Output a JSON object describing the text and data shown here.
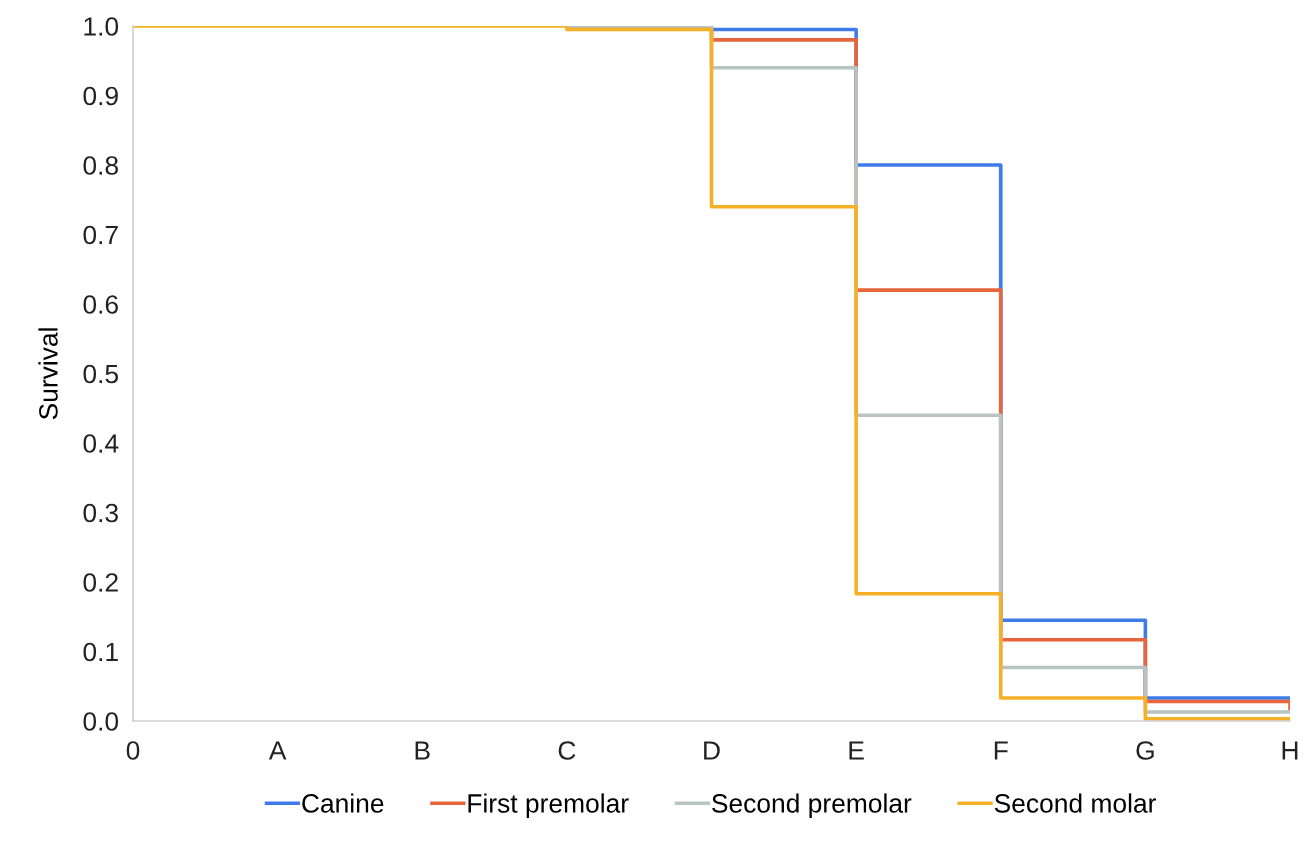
{
  "chart_data": {
    "type": "step",
    "ylabel": "Survival",
    "categories": [
      "0",
      "A",
      "B",
      "C",
      "D",
      "E",
      "F",
      "G",
      "H"
    ],
    "series": [
      {
        "name": "Canine",
        "color": "#3f7be8",
        "values": [
          null,
          null,
          null,
          null,
          0.995,
          0.8,
          0.145,
          0.033,
          0.033
        ]
      },
      {
        "name": "First premolar",
        "color": "#e8643a",
        "values": [
          null,
          null,
          null,
          1.0,
          0.98,
          0.62,
          0.117,
          0.028,
          0.018
        ]
      },
      {
        "name": "Second premolar",
        "color": "#b8c4c4",
        "values": [
          null,
          null,
          null,
          1.0,
          0.94,
          0.44,
          0.077,
          0.013,
          0.013
        ]
      },
      {
        "name": "Second molar",
        "color": "#f5b026",
        "values": [
          1.0,
          1.0,
          1.0,
          0.995,
          0.74,
          0.183,
          0.033,
          0.003,
          0.003
        ]
      }
    ],
    "ylim": [
      0,
      1.0
    ],
    "yticks": [
      {
        "value": 0,
        "label": "0.0"
      },
      {
        "value": 0.1,
        "label": "0.1"
      },
      {
        "value": 0.2,
        "label": "0.2"
      },
      {
        "value": 0.3,
        "label": "0.3"
      },
      {
        "value": 0.4,
        "label": "0.4"
      },
      {
        "value": 0.5,
        "label": "0.5"
      },
      {
        "value": 0.6,
        "label": "0.6"
      },
      {
        "value": 0.7,
        "label": "0.7"
      },
      {
        "value": 0.8,
        "label": "0.8"
      },
      {
        "value": 0.9,
        "label": "0.9"
      },
      {
        "value": 1.0,
        "label": "1.0"
      }
    ],
    "grid": false,
    "legend": "bottom"
  }
}
